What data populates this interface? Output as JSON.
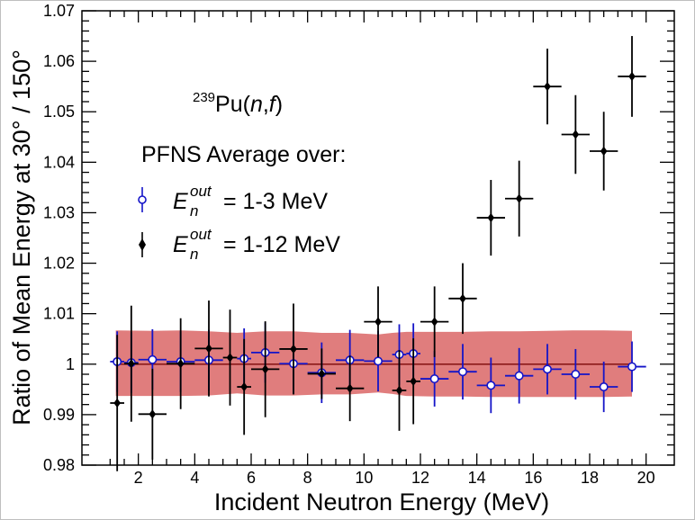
{
  "chart_data": {
    "type": "scatter",
    "xlabel": "Incident Neutron Energy (MeV)",
    "ylabel": "Ratio of Mean Energy at 30° / 150°",
    "xlim": [
      0.0,
      21.0
    ],
    "ylim": [
      0.98,
      1.07
    ],
    "x_ticks": [
      "2",
      "4",
      "6",
      "8",
      "10",
      "12",
      "14",
      "16",
      "18",
      "20"
    ],
    "y_ticks": [
      "0.98",
      "0.99",
      "1",
      "1.01",
      "1.02",
      "1.03",
      "1.04",
      "1.05",
      "1.06",
      "1.07"
    ],
    "grid": false,
    "annotations": {
      "reaction_mass": "239",
      "reaction_element": "Pu(",
      "reaction_n": "n",
      "reaction_comma": ",",
      "reaction_f": "f",
      "reaction_close": ")",
      "legend_title": "PFNS Average over:"
    },
    "legend": {
      "placement": "left",
      "symbol": "E",
      "superscript": "out",
      "subscript": "n",
      "entries": [
        "= 1-3 MeV",
        "= 1-12 MeV"
      ]
    },
    "band": {
      "color": "#e07d7d",
      "x": [
        1.2,
        2.5,
        3.5,
        4.5,
        5.5,
        6.5,
        7.5,
        8.5,
        9.5,
        10.5,
        11.0,
        11.5,
        12.5,
        13.5,
        14.5,
        15.5,
        16.5,
        17.5,
        18.5,
        19.5
      ],
      "upper": [
        1.0067,
        1.0066,
        1.0067,
        1.0065,
        1.0062,
        1.0065,
        1.0065,
        1.0062,
        1.0062,
        1.0059,
        1.0062,
        1.0064,
        1.0064,
        1.0064,
        1.0065,
        1.0065,
        1.0066,
        1.0067,
        1.0067,
        1.0066
      ],
      "lower": [
        0.9937,
        0.9937,
        0.9937,
        0.9938,
        0.9942,
        0.9938,
        0.9938,
        0.994,
        0.994,
        0.9944,
        0.9941,
        0.9937,
        0.9936,
        0.9936,
        0.9935,
        0.9935,
        0.9935,
        0.9935,
        0.9935,
        0.9936
      ]
    },
    "reference_line": {
      "y": 1.0,
      "color": "#8b1a1a"
    },
    "series": [
      {
        "name": "1-3 MeV",
        "color": "#1414c8",
        "marker": "open-circle",
        "x": [
          1.25,
          1.75,
          2.5,
          3.5,
          4.5,
          5.75,
          6.5,
          7.5,
          8.5,
          9.5,
          10.5,
          11.25,
          11.75,
          12.5,
          13.5,
          14.5,
          15.5,
          16.5,
          17.5,
          18.5,
          19.5
        ],
        "y": [
          1.0005,
          1.0003,
          1.0009,
          1.0005,
          1.0008,
          1.0011,
          1.0023,
          1.0001,
          0.9983,
          1.0008,
          1.0006,
          1.0019,
          1.0021,
          0.9971,
          0.9985,
          0.9958,
          0.9977,
          0.999,
          0.998,
          0.9955,
          0.9995
        ],
        "yerr": [
          0.006,
          0.006,
          0.006,
          0.006,
          0.006,
          0.006,
          0.006,
          0.006,
          0.006,
          0.006,
          0.006,
          0.006,
          0.006,
          0.0055,
          0.0055,
          0.0055,
          0.0055,
          0.005,
          0.005,
          0.005,
          0.005
        ],
        "xerr": [
          0.25,
          0.25,
          0.5,
          0.5,
          0.5,
          0.25,
          0.5,
          0.5,
          0.5,
          0.5,
          0.5,
          0.25,
          0.25,
          0.5,
          0.5,
          0.5,
          0.5,
          0.5,
          0.5,
          0.5,
          0.5
        ]
      },
      {
        "name": "1-12 MeV",
        "color": "#000000",
        "marker": "filled-diamond",
        "x": [
          1.25,
          1.75,
          2.5,
          3.5,
          4.5,
          5.25,
          5.75,
          6.5,
          7.5,
          8.5,
          9.5,
          10.5,
          11.25,
          11.75,
          12.5,
          13.5,
          14.5,
          15.5,
          16.5,
          17.5,
          18.5,
          19.5
        ],
        "y": [
          0.9923,
          1.0001,
          0.9901,
          1.0001,
          1.0031,
          1.0013,
          0.9955,
          0.999,
          1.003,
          0.9981,
          0.9952,
          1.0084,
          0.9948,
          0.9966,
          1.0084,
          1.013,
          1.029,
          1.0328,
          1.055,
          1.0455,
          1.0422,
          1.057
        ],
        "yerr": [
          0.0135,
          0.0115,
          0.009,
          0.009,
          0.0095,
          0.0095,
          0.0095,
          0.0095,
          0.009,
          0.005,
          0.0065,
          0.007,
          0.008,
          0.0085,
          0.007,
          0.007,
          0.0075,
          0.0075,
          0.0075,
          0.0078,
          0.0078,
          0.008
        ],
        "xerr": [
          0.25,
          0.25,
          0.5,
          0.5,
          0.5,
          0.25,
          0.25,
          0.5,
          0.5,
          0.5,
          0.5,
          0.5,
          0.25,
          0.25,
          0.5,
          0.5,
          0.5,
          0.5,
          0.5,
          0.5,
          0.5,
          0.5
        ]
      }
    ]
  }
}
